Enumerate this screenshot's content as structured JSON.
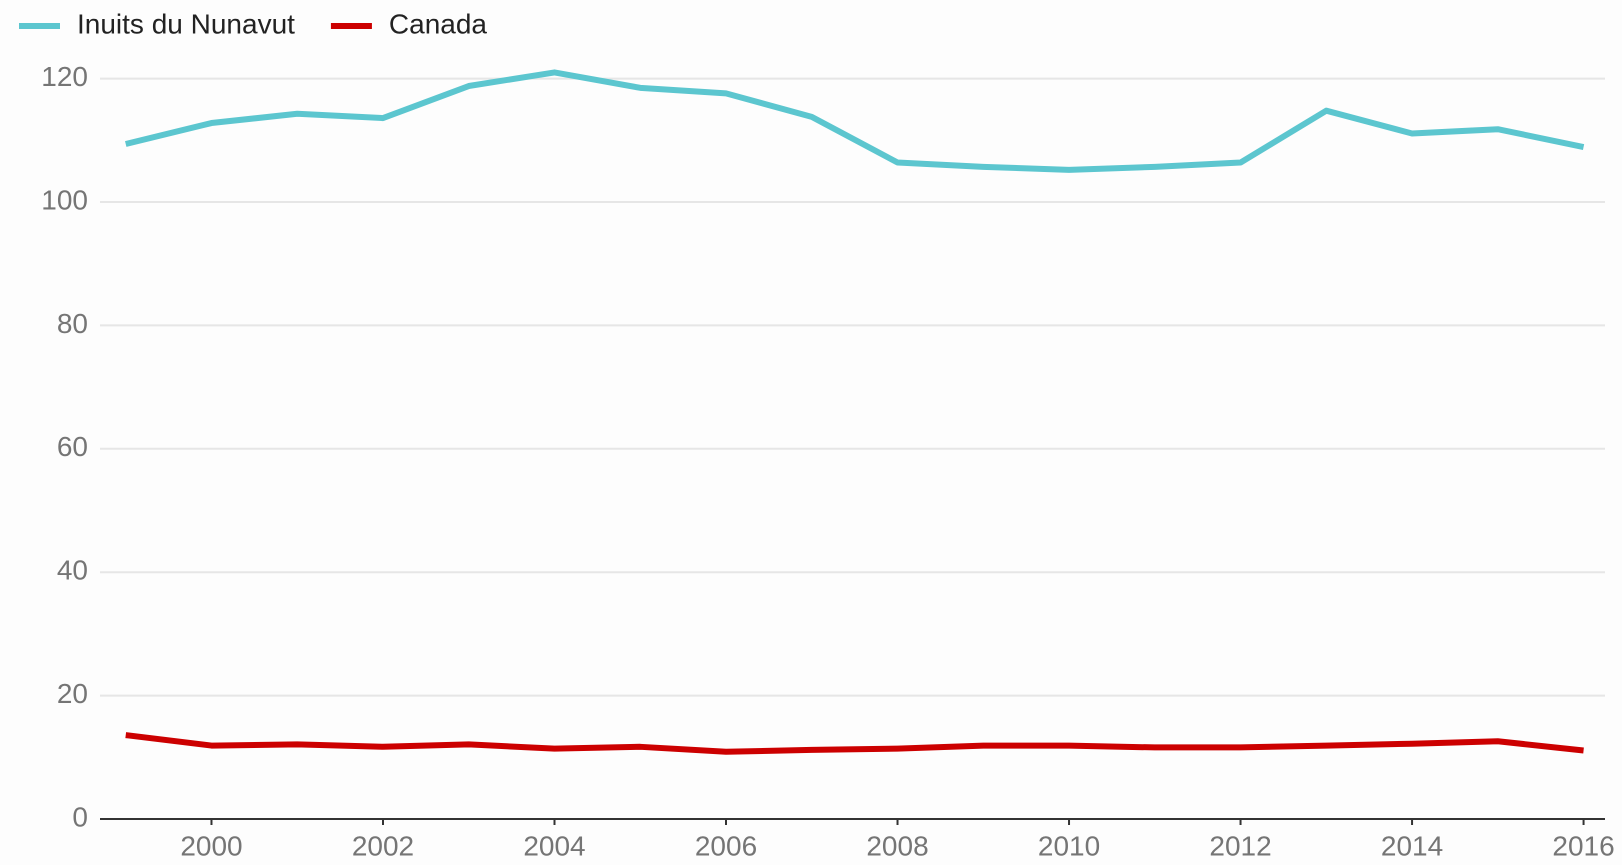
{
  "chart_data": {
    "type": "line",
    "x": [
      1999,
      2000,
      2001,
      2002,
      2003,
      2004,
      2005,
      2006,
      2007,
      2008,
      2009,
      2010,
      2011,
      2012,
      2013,
      2014,
      2015,
      2016
    ],
    "series": [
      {
        "name": "Inuits du Nunavut",
        "color": "#5cc6cf",
        "values": [
          109.4,
          112.8,
          114.3,
          113.6,
          118.8,
          121.0,
          118.5,
          117.6,
          113.8,
          106.4,
          105.7,
          105.2,
          105.7,
          106.4,
          114.8,
          111.1,
          111.8,
          108.9
        ]
      },
      {
        "name": "Canada",
        "color": "#cc0000",
        "values": [
          13.6,
          11.9,
          12.1,
          11.7,
          12.1,
          11.4,
          11.7,
          10.9,
          11.2,
          11.4,
          11.9,
          11.9,
          11.6,
          11.6,
          11.9,
          12.2,
          12.6,
          11.1
        ]
      }
    ],
    "xlim": [
      1998.7,
      2016.25
    ],
    "xticks": [
      2000,
      2002,
      2004,
      2006,
      2008,
      2010,
      2012,
      2014,
      2016
    ],
    "ylim": [
      0,
      125
    ],
    "yticks": [
      0,
      20,
      40,
      60,
      80,
      100,
      120
    ],
    "grid": true,
    "legend": "top-left"
  }
}
